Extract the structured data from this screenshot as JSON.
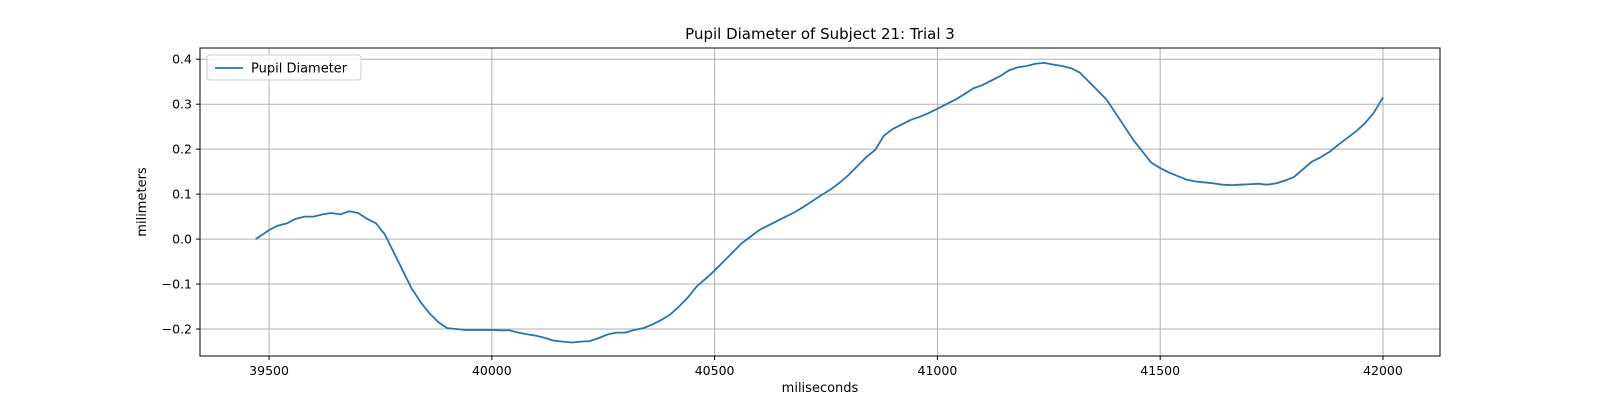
{
  "chart_data": {
    "type": "line",
    "title": "Pupil Diameter of Subject 21: Trial 3",
    "xlabel": "miliseconds",
    "ylabel": "milimeters",
    "xlim": [
      39345,
      42128
    ],
    "ylim": [
      -0.26,
      0.425
    ],
    "xticks": [
      39500,
      40000,
      40500,
      41000,
      41500,
      42000
    ],
    "yticks": [
      -0.2,
      -0.1,
      0.0,
      0.1,
      0.2,
      0.3,
      0.4
    ],
    "ytick_labels": [
      "−0.2",
      "−0.1",
      "0.0",
      "0.1",
      "0.2",
      "0.3",
      "0.4"
    ],
    "grid": true,
    "legend": {
      "position": "top-left",
      "entries": [
        "Pupil Diameter"
      ]
    },
    "series": [
      {
        "name": "Pupil Diameter",
        "color": "#1f77b4",
        "x": [
          39470,
          39500,
          39520,
          39540,
          39560,
          39580,
          39600,
          39620,
          39640,
          39660,
          39680,
          39700,
          39720,
          39740,
          39760,
          39780,
          39800,
          39820,
          39840,
          39860,
          39880,
          39900,
          39920,
          39940,
          39960,
          39980,
          40000,
          40020,
          40040,
          40060,
          40080,
          40100,
          40120,
          40140,
          40160,
          40180,
          40200,
          40220,
          40240,
          40260,
          40280,
          40300,
          40320,
          40340,
          40360,
          40380,
          40400,
          40420,
          40440,
          40460,
          40480,
          40500,
          40520,
          40540,
          40560,
          40580,
          40600,
          40620,
          40640,
          40660,
          40680,
          40700,
          40720,
          40740,
          40760,
          40780,
          40800,
          40820,
          40840,
          40860,
          40880,
          40900,
          40920,
          40940,
          40960,
          40980,
          41000,
          41020,
          41040,
          41060,
          41080,
          41100,
          41120,
          41140,
          41160,
          41180,
          41200,
          41220,
          41240,
          41260,
          41280,
          41300,
          41320,
          41340,
          41360,
          41380,
          41400,
          41420,
          41440,
          41460,
          41480,
          41500,
          41520,
          41540,
          41560,
          41580,
          41600,
          41620,
          41640,
          41660,
          41680,
          41700,
          41720,
          41740,
          41760,
          41780,
          41800,
          41820,
          41840,
          41860,
          41880,
          41900,
          41920,
          41940,
          41960,
          41980,
          42000
        ],
        "y": [
          0.0,
          0.02,
          0.03,
          0.035,
          0.045,
          0.05,
          0.05,
          0.055,
          0.058,
          0.055,
          0.062,
          0.058,
          0.045,
          0.035,
          0.01,
          -0.03,
          -0.07,
          -0.11,
          -0.14,
          -0.165,
          -0.185,
          -0.198,
          -0.2,
          -0.202,
          -0.202,
          -0.202,
          -0.202,
          -0.203,
          -0.203,
          -0.208,
          -0.212,
          -0.215,
          -0.22,
          -0.226,
          -0.228,
          -0.23,
          -0.228,
          -0.227,
          -0.22,
          -0.212,
          -0.208,
          -0.208,
          -0.202,
          -0.198,
          -0.19,
          -0.18,
          -0.168,
          -0.15,
          -0.13,
          -0.105,
          -0.088,
          -0.07,
          -0.05,
          -0.03,
          -0.01,
          0.005,
          0.02,
          0.03,
          0.04,
          0.05,
          0.06,
          0.072,
          0.085,
          0.098,
          0.11,
          0.125,
          0.142,
          0.162,
          0.182,
          0.198,
          0.23,
          0.245,
          0.255,
          0.265,
          0.272,
          0.28,
          0.29,
          0.3,
          0.31,
          0.322,
          0.335,
          0.342,
          0.352,
          0.362,
          0.375,
          0.382,
          0.385,
          0.39,
          0.392,
          0.388,
          0.385,
          0.38,
          0.37,
          0.35,
          0.33,
          0.31,
          0.28,
          0.25,
          0.22,
          0.195,
          0.17,
          0.158,
          0.148,
          0.14,
          0.132,
          0.128,
          0.126,
          0.124,
          0.121,
          0.12,
          0.121,
          0.122,
          0.123,
          0.121,
          0.124,
          0.13,
          0.138,
          0.155,
          0.172,
          0.182,
          0.194,
          0.21,
          0.225,
          0.24,
          0.258,
          0.282,
          0.315
        ]
      }
    ]
  }
}
